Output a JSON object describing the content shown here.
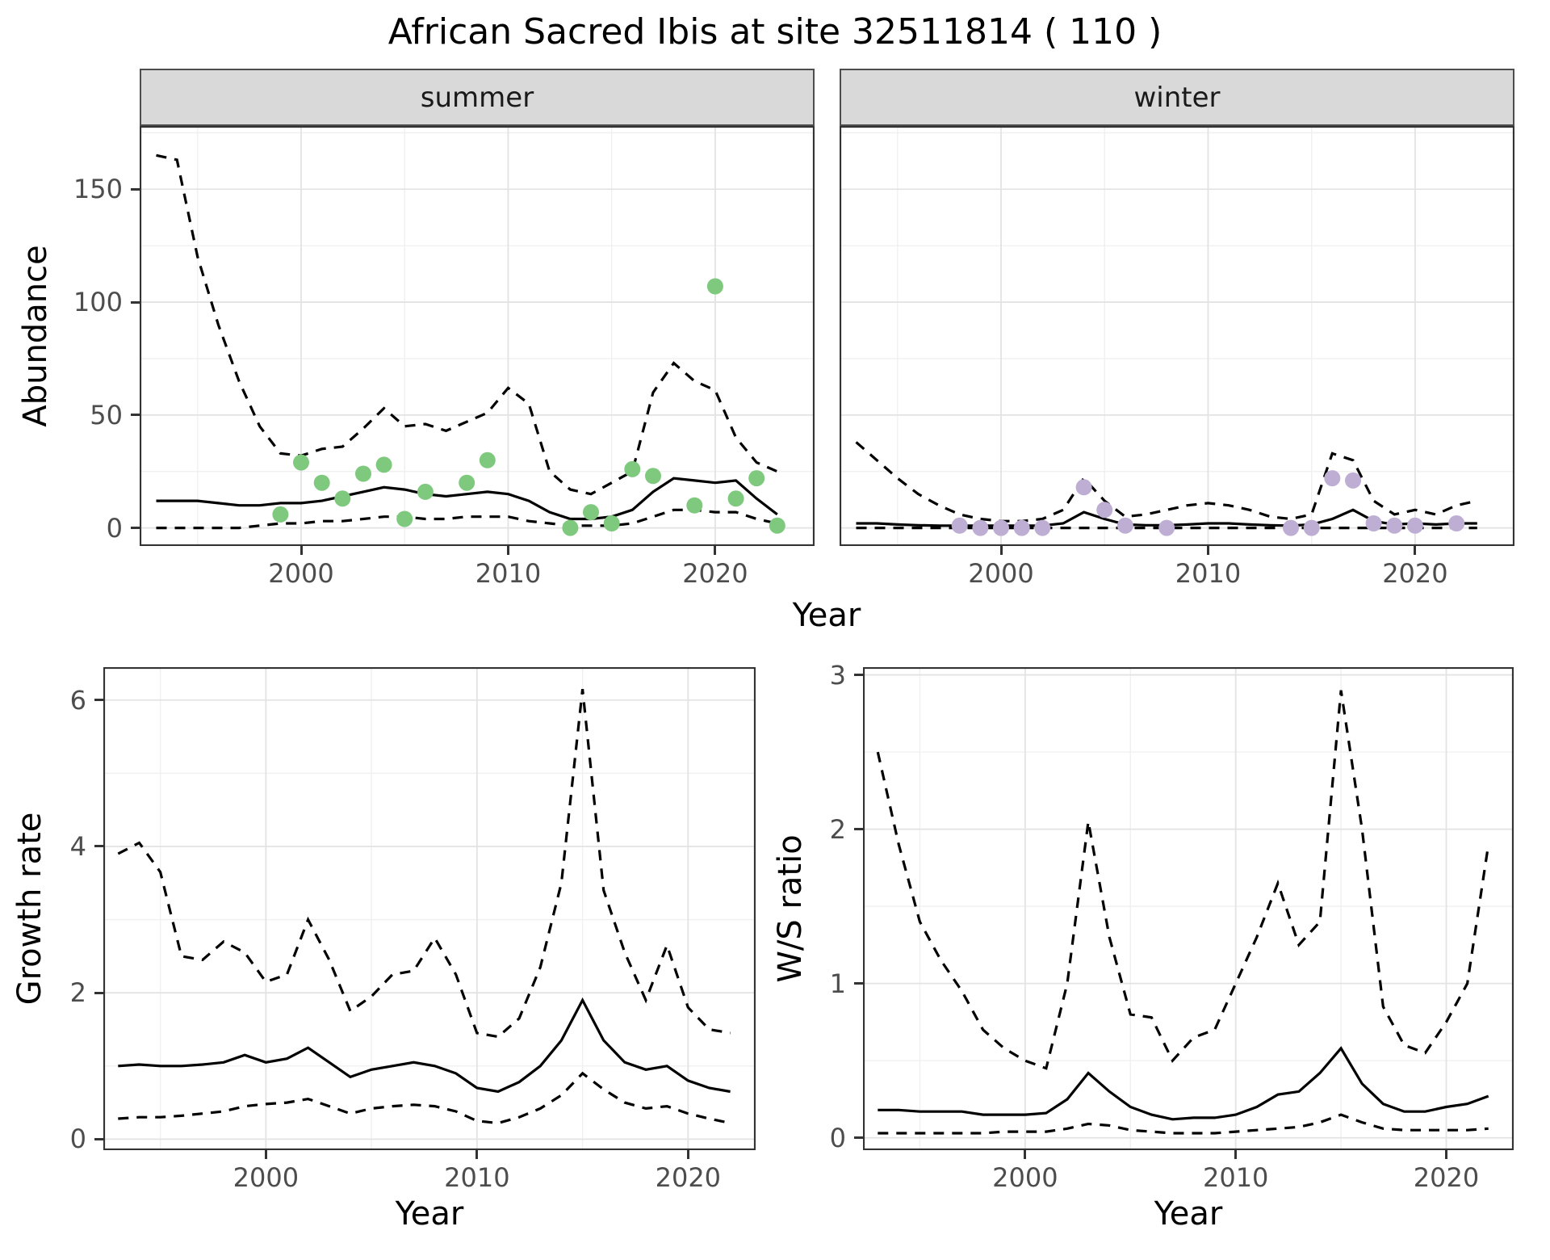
{
  "title": "African Sacred Ibis at site 32511814 ( 110 )",
  "colors": {
    "observed_summer": "#7FC97F",
    "observed_winter": "#BEAED4",
    "line": "#000000",
    "strip_bg": "#d9d9d9",
    "panel_bg": "#ffffff",
    "panel_border": "#333333",
    "grid_major": "#e3e3e3",
    "grid_minor": "#f0f0f0",
    "axis_text": "#4d4d4d"
  },
  "chart_data": [
    {
      "id": "abundance",
      "type": "line",
      "faceted_by": "season",
      "facets": [
        "summer",
        "winter"
      ],
      "xlabel": "Year",
      "ylabel": "Abundance",
      "xticks": [
        2000,
        2010,
        2020
      ],
      "yticks": [
        0,
        50,
        100,
        150
      ],
      "xlim": [
        1992.2,
        2024.8
      ],
      "ylim": [
        -8,
        178
      ],
      "grid": true,
      "legend": "none",
      "series": {
        "summer": {
          "x": [
            1993,
            1994,
            1995,
            1996,
            1997,
            1998,
            1999,
            2000,
            2001,
            2002,
            2003,
            2004,
            2005,
            2006,
            2007,
            2008,
            2009,
            2010,
            2011,
            2012,
            2013,
            2014,
            2015,
            2016,
            2017,
            2018,
            2019,
            2020,
            2021,
            2022,
            2023
          ],
          "mean": [
            12,
            12,
            12,
            11,
            10,
            10,
            11,
            11,
            12,
            14,
            16,
            18,
            17,
            15,
            14,
            15,
            16,
            15,
            12,
            7,
            4,
            4,
            5,
            8,
            16,
            22,
            21,
            20,
            21,
            13,
            6
          ],
          "ci_upper": [
            165,
            163,
            120,
            90,
            65,
            45,
            33,
            32,
            35,
            36,
            44,
            53,
            45,
            46,
            43,
            47,
            51,
            62,
            55,
            25,
            17,
            15,
            20,
            25,
            60,
            73,
            65,
            61,
            40,
            29,
            25
          ],
          "ci_lower": [
            0,
            0,
            0,
            0,
            0,
            1,
            2,
            2,
            3,
            3,
            4,
            5,
            5,
            4,
            4,
            5,
            5,
            5,
            3,
            2,
            1,
            1,
            1,
            2,
            5,
            8,
            8,
            7,
            7,
            4,
            2
          ],
          "observed_points": {
            "x": [
              1999,
              2000,
              2001,
              2002,
              2003,
              2004,
              2005,
              2006,
              2008,
              2009,
              2013,
              2014,
              2015,
              2016,
              2017,
              2019,
              2020,
              2021,
              2022,
              2023
            ],
            "y": [
              6,
              29,
              20,
              13,
              24,
              28,
              4,
              16,
              20,
              30,
              0,
              7,
              2,
              26,
              23,
              10,
              107,
              13,
              22,
              1
            ]
          }
        },
        "winter": {
          "x": [
            1993,
            1994,
            1995,
            1996,
            1997,
            1998,
            1999,
            2000,
            2001,
            2002,
            2003,
            2004,
            2005,
            2006,
            2007,
            2008,
            2009,
            2010,
            2011,
            2012,
            2013,
            2014,
            2015,
            2016,
            2017,
            2018,
            2019,
            2020,
            2021,
            2022,
            2023
          ],
          "mean": [
            2,
            2,
            1.5,
            1.2,
            1,
            1,
            1,
            1,
            1,
            1,
            2,
            7,
            4,
            1.5,
            1.2,
            1.2,
            1.5,
            2,
            2,
            1.5,
            1.2,
            1,
            1.5,
            4,
            8,
            3,
            1.5,
            2,
            1.5,
            2,
            2
          ],
          "ci_upper": [
            38,
            30,
            22,
            15,
            10,
            6,
            4,
            3,
            3,
            4,
            8,
            22,
            12,
            5,
            6,
            8,
            10,
            11,
            10,
            8,
            5,
            4,
            6,
            33,
            30,
            12,
            6,
            8,
            6,
            10,
            12
          ],
          "ci_lower": [
            0,
            0,
            0,
            0,
            0,
            0,
            0,
            0,
            0,
            0,
            0,
            0,
            0,
            0,
            0,
            0,
            0,
            0,
            0,
            0,
            0,
            0,
            0,
            0,
            0,
            0,
            0,
            0,
            0,
            0,
            0
          ],
          "observed_points": {
            "x": [
              1998,
              1999,
              2000,
              2001,
              2002,
              2004,
              2005,
              2006,
              2008,
              2014,
              2015,
              2016,
              2017,
              2018,
              2019,
              2020,
              2022
            ],
            "y": [
              1,
              0,
              0,
              0,
              0,
              18,
              8,
              1,
              0,
              0,
              0,
              22,
              21,
              2,
              1,
              1,
              2
            ]
          }
        }
      }
    },
    {
      "id": "growth-rate",
      "type": "line",
      "xlabel": "Year",
      "ylabel": "Growth rate",
      "xticks": [
        2000,
        2010,
        2020
      ],
      "yticks": [
        0,
        2,
        4,
        6
      ],
      "xlim": [
        1992.3,
        2023.2
      ],
      "ylim": [
        -0.15,
        6.45
      ],
      "grid": true,
      "legend": "none",
      "series": {
        "x": [
          1993,
          1994,
          1995,
          1996,
          1997,
          1998,
          1999,
          2000,
          2001,
          2002,
          2003,
          2004,
          2005,
          2006,
          2007,
          2008,
          2009,
          2010,
          2011,
          2012,
          2013,
          2014,
          2015,
          2016,
          2017,
          2018,
          2019,
          2020,
          2021,
          2022
        ],
        "mean": [
          1.0,
          1.02,
          1.0,
          1.0,
          1.02,
          1.05,
          1.15,
          1.05,
          1.1,
          1.25,
          1.05,
          0.85,
          0.95,
          1.0,
          1.05,
          1.0,
          0.9,
          0.7,
          0.65,
          0.78,
          1.0,
          1.35,
          1.9,
          1.35,
          1.05,
          0.95,
          1.0,
          0.8,
          0.7,
          0.65
        ],
        "ci_upper": [
          3.9,
          4.05,
          3.65,
          2.5,
          2.45,
          2.7,
          2.55,
          2.15,
          2.25,
          3.0,
          2.45,
          1.75,
          1.95,
          2.25,
          2.3,
          2.75,
          2.25,
          1.45,
          1.4,
          1.65,
          2.35,
          3.5,
          6.15,
          3.4,
          2.55,
          1.9,
          2.65,
          1.8,
          1.5,
          1.45
        ],
        "ci_lower": [
          0.28,
          0.3,
          0.3,
          0.32,
          0.35,
          0.38,
          0.45,
          0.48,
          0.5,
          0.55,
          0.45,
          0.35,
          0.42,
          0.45,
          0.47,
          0.45,
          0.38,
          0.25,
          0.22,
          0.3,
          0.42,
          0.6,
          0.9,
          0.68,
          0.5,
          0.42,
          0.45,
          0.35,
          0.28,
          0.22
        ]
      }
    },
    {
      "id": "ws-ratio",
      "type": "line",
      "xlabel": "Year",
      "ylabel": "W/S ratio",
      "xticks": [
        2000,
        2010,
        2020
      ],
      "yticks": [
        0,
        1,
        2,
        3
      ],
      "xlim": [
        1992.3,
        2023.2
      ],
      "ylim": [
        -0.08,
        3.05
      ],
      "grid": true,
      "legend": "none",
      "series": {
        "x": [
          1993,
          1994,
          1995,
          1996,
          1997,
          1998,
          1999,
          2000,
          2001,
          2002,
          2003,
          2004,
          2005,
          2006,
          2007,
          2008,
          2009,
          2010,
          2011,
          2012,
          2013,
          2014,
          2015,
          2016,
          2017,
          2018,
          2019,
          2020,
          2021,
          2022
        ],
        "mean": [
          0.18,
          0.18,
          0.17,
          0.17,
          0.17,
          0.15,
          0.15,
          0.15,
          0.16,
          0.25,
          0.42,
          0.3,
          0.2,
          0.15,
          0.12,
          0.13,
          0.13,
          0.15,
          0.2,
          0.28,
          0.3,
          0.42,
          0.58,
          0.35,
          0.22,
          0.17,
          0.17,
          0.2,
          0.22,
          0.27
        ],
        "ci_upper": [
          2.5,
          1.9,
          1.4,
          1.15,
          0.95,
          0.7,
          0.58,
          0.5,
          0.45,
          1.0,
          2.05,
          1.3,
          0.8,
          0.78,
          0.5,
          0.65,
          0.7,
          1.0,
          1.3,
          1.65,
          1.25,
          1.4,
          2.9,
          2.0,
          0.85,
          0.6,
          0.55,
          0.75,
          1.0,
          1.9
        ],
        "ci_lower": [
          0.03,
          0.03,
          0.03,
          0.03,
          0.03,
          0.03,
          0.04,
          0.04,
          0.04,
          0.06,
          0.09,
          0.08,
          0.05,
          0.04,
          0.03,
          0.03,
          0.03,
          0.04,
          0.05,
          0.06,
          0.07,
          0.1,
          0.15,
          0.1,
          0.06,
          0.05,
          0.05,
          0.05,
          0.05,
          0.06
        ]
      }
    }
  ]
}
